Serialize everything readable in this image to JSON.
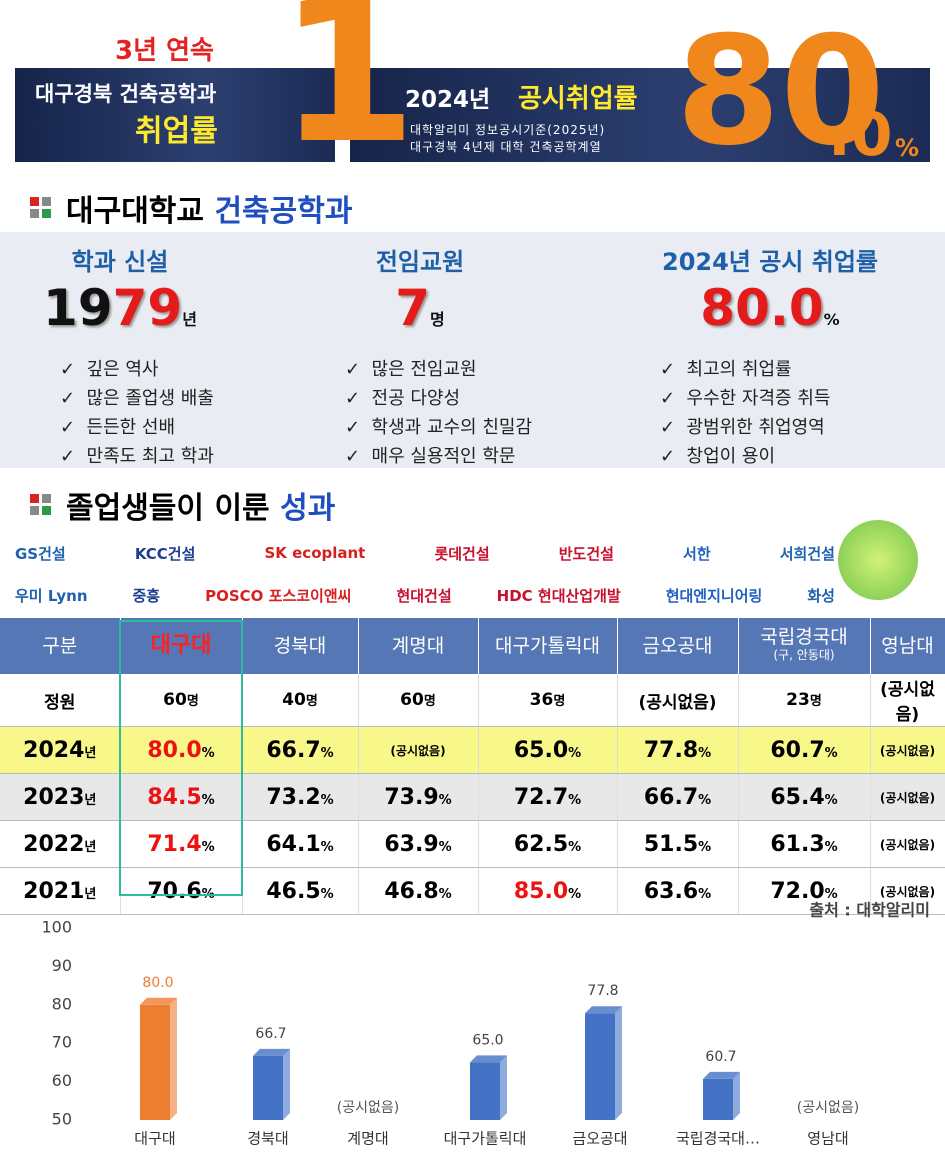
{
  "banner": {
    "streak": "3년 연속",
    "line1": "대구경북 건축공학과",
    "line2": "취업률",
    "rank": "1",
    "headline_year": "2024년",
    "headline": "공시취업률",
    "note1": "대학알리미 정보공시기준(2025년)",
    "note2": "대구경북 4년제 대학 건축공학계열",
    "big_int": "80",
    "big_dec": ".0",
    "big_unit": "%"
  },
  "section1": {
    "title_a": "대구대학교",
    "title_b": "건축공학과"
  },
  "stats": [
    {
      "label": "학과 신설",
      "value_a": "19",
      "value_b": "79",
      "unit": "년",
      "points": [
        "깊은 역사",
        "많은 졸업생 배출",
        "든든한 선배",
        "만족도 최고 학과"
      ]
    },
    {
      "label": "전임교원",
      "value_b": "7",
      "unit": "명",
      "points": [
        "많은 전임교원",
        "전공 다양성",
        "학생과 교수의 친밀감",
        "매우 실용적인 학문"
      ]
    },
    {
      "label": "2024년 공시 취업률",
      "value_b": "80.0",
      "unit": "%",
      "points": [
        "최고의 취업률",
        "우수한 자격증 취득",
        "광범위한 취업영역",
        "창업이 용이"
      ]
    }
  ],
  "section2": {
    "title_a": "졸업생들이 이룬",
    "title_b": "성과"
  },
  "logos": [
    [
      "GS건설",
      "KCC건설",
      "SK ecoplant",
      "롯데건설",
      "반도건설",
      "서한",
      "서희건설"
    ],
    [
      "우미 Lynn",
      "중흥",
      "POSCO 포스코이앤씨",
      "현대건설",
      "HDC 현대산업개발",
      "현대엔지니어링",
      "화성"
    ]
  ],
  "table": {
    "header": [
      {
        "text": "구분"
      },
      {
        "text": "대구대"
      },
      {
        "text": "경북대"
      },
      {
        "text": "계명대"
      },
      {
        "text": "대구가톨릭대"
      },
      {
        "text": "금오공대"
      },
      {
        "text": "국립경국대",
        "note": "(구, 안동대)"
      },
      {
        "text": "영남대"
      }
    ],
    "rows": [
      {
        "label": "정원",
        "cells": [
          {
            "text": "60",
            "unit": "명"
          },
          {
            "text": "40",
            "unit": "명"
          },
          {
            "text": "60",
            "unit": "명"
          },
          {
            "text": "36",
            "unit": "명"
          },
          {
            "text": "(공시없음)"
          },
          {
            "text": "23",
            "unit": "명"
          },
          {
            "text": "(공시없음)"
          }
        ]
      },
      {
        "label": "2024",
        "label_unit": "년",
        "cells": [
          {
            "text": "80.0",
            "unit": "%",
            "red": true
          },
          {
            "text": "66.7",
            "unit": "%"
          },
          {
            "text": "(공시없음)"
          },
          {
            "text": "65.0",
            "unit": "%"
          },
          {
            "text": "77.8",
            "unit": "%"
          },
          {
            "text": "60.7",
            "unit": "%"
          },
          {
            "text": "(공시없음)"
          }
        ]
      },
      {
        "label": "2023",
        "label_unit": "년",
        "cells": [
          {
            "text": "84.5",
            "unit": "%",
            "red": true
          },
          {
            "text": "73.2",
            "unit": "%"
          },
          {
            "text": "73.9",
            "unit": "%"
          },
          {
            "text": "72.7",
            "unit": "%"
          },
          {
            "text": "66.7",
            "unit": "%"
          },
          {
            "text": "65.4",
            "unit": "%"
          },
          {
            "text": "(공시없음)"
          }
        ]
      },
      {
        "label": "2022",
        "label_unit": "년",
        "cells": [
          {
            "text": "71.4",
            "unit": "%",
            "red": true
          },
          {
            "text": "64.1",
            "unit": "%"
          },
          {
            "text": "63.9",
            "unit": "%"
          },
          {
            "text": "62.5",
            "unit": "%"
          },
          {
            "text": "51.5",
            "unit": "%"
          },
          {
            "text": "61.3",
            "unit": "%"
          },
          {
            "text": "(공시없음)"
          }
        ]
      },
      {
        "label": "2021",
        "label_unit": "년",
        "cells": [
          {
            "text": "70.6",
            "unit": "%"
          },
          {
            "text": "46.5",
            "unit": "%"
          },
          {
            "text": "46.8",
            "unit": "%"
          },
          {
            "text": "85.0",
            "unit": "%",
            "red": true
          },
          {
            "text": "63.6",
            "unit": "%"
          },
          {
            "text": "72.0",
            "unit": "%"
          },
          {
            "text": "(공시없음)"
          }
        ]
      }
    ]
  },
  "chart_data": {
    "type": "bar",
    "source": "출처 : 대학알리미",
    "categories": [
      "대구대",
      "경북대",
      "계명대",
      "대구가톨릭대",
      "금오공대",
      "국립경국대…",
      "영남대"
    ],
    "values": [
      80.0,
      66.7,
      null,
      65.0,
      77.8,
      60.7,
      null
    ],
    "value_labels": [
      "80.0",
      "66.7",
      null,
      "65.0",
      "77.8",
      "60.7",
      null
    ],
    "missing_label": "(공시없음)",
    "colors": [
      "#ed7d31",
      "#4472c4",
      "#4472c4",
      "#4472c4",
      "#4472c4",
      "#4472c4",
      "#4472c4"
    ],
    "ylim": [
      50,
      100
    ],
    "yticks": [
      50,
      60,
      70,
      80,
      90,
      100
    ],
    "grid": false
  }
}
